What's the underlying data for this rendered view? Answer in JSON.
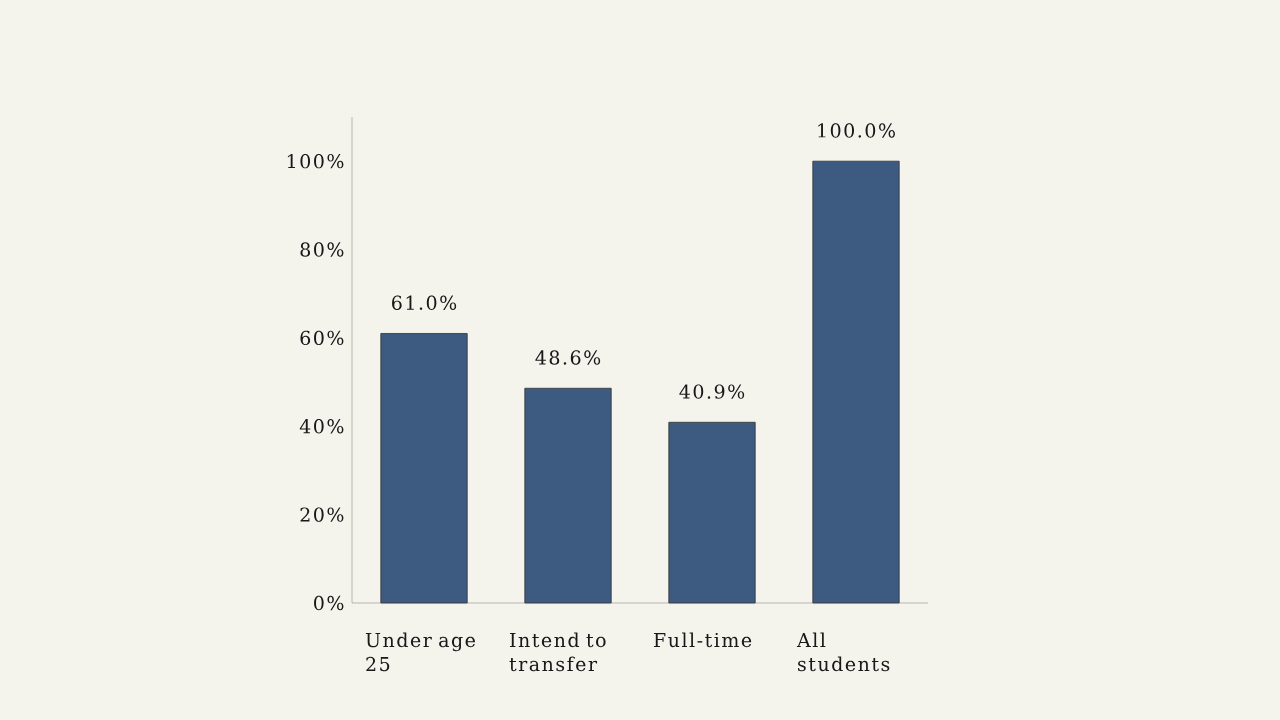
{
  "chart_data": {
    "type": "bar",
    "categories": [
      "Under age 25",
      "Intend to transfer",
      "Full-time",
      "All students"
    ],
    "values": [
      61.0,
      48.6,
      40.9,
      100.0
    ],
    "value_labels": [
      "61.0%",
      "48.6%",
      "40.9%",
      "100.0%"
    ],
    "color": "#3d5a80",
    "ylim": [
      0,
      110
    ],
    "yticks": [
      {
        "value": 0,
        "label": "0%"
      },
      {
        "value": 20,
        "label": "20%"
      },
      {
        "value": 40,
        "label": "40%"
      },
      {
        "value": 60,
        "label": "60%"
      },
      {
        "value": 80,
        "label": "80%"
      },
      {
        "value": 100,
        "label": "100%"
      }
    ]
  }
}
